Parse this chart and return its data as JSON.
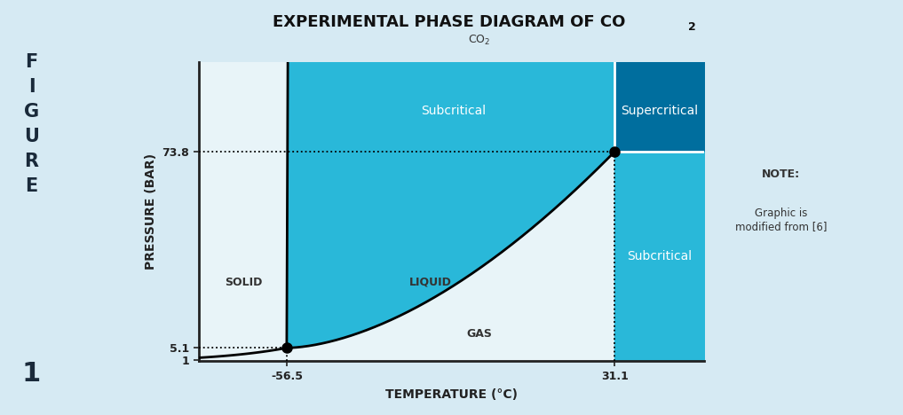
{
  "title_main": "EXPERIMENTAL PHASE DIAGRAM OF CO",
  "xlabel": "TEMPERATURE (°C)",
  "ylabel": "PRESSURE (BAR)",
  "figure_bg": "#d6eaf3",
  "plot_bg": "#e8f4f8",
  "subcritical_color": "#29b8d9",
  "supercritical_color": "#006e9e",
  "subcritical_gas_color": "#29b8d9",
  "triple_point": [
    -56.5,
    5.1
  ],
  "critical_point": [
    31.1,
    73.8
  ],
  "x_min": -80,
  "x_max": 55,
  "y_min": 0.5,
  "y_max": 105,
  "left_panel_color": "#c5dfe9",
  "left_text_color": "#1a2a3a",
  "note_bold": "NOTE:",
  "note_rest": "Graphic is\nmodified from [6]"
}
